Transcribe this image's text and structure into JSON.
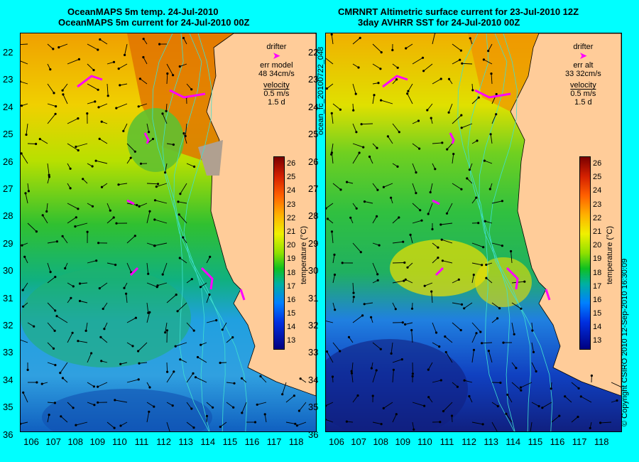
{
  "left_panel": {
    "title_line1": "OceanMAPS 5m temp. 24-Jul-2010",
    "title_line2": "OceanMAPS 5m current for 24-Jul-2010 00Z",
    "legend": {
      "drifter": "drifter",
      "err_label": "err model",
      "err_value": "48 34cm/s",
      "velocity": "velocity",
      "speed": "0.5 m/s",
      "days": "1.5 d"
    }
  },
  "right_panel": {
    "title_line1": "CMRNRT Altimetric surface current for 23-Jul-2010 12Z",
    "title_line2": "3day AVHRR SST for 24-Jul-2010 00Z",
    "legend": {
      "drifter": "drifter",
      "err_label": "err alt",
      "err_value": "33 32cm/s",
      "velocity": "velocity",
      "speed": "0.5 m/s",
      "days": "1.5 d"
    }
  },
  "latitudes": [
    "22",
    "23",
    "24",
    "25",
    "26",
    "27",
    "28",
    "29",
    "30",
    "31",
    "32",
    "33",
    "34",
    "35",
    "36"
  ],
  "longitudes": [
    "106",
    "107",
    "108",
    "109",
    "110",
    "111",
    "112",
    "113",
    "114",
    "115",
    "116",
    "117",
    "118"
  ],
  "colorbar": {
    "label": "temperature (°C)",
    "ticks": [
      "26",
      "25",
      "24",
      "23",
      "22",
      "21",
      "20",
      "19",
      "18",
      "17",
      "16",
      "15",
      "14",
      "13"
    ]
  },
  "side_labels": {
    "file_id": "ocean_fc_20100722_048",
    "copyright": "© Copyright CSIRO 2010   12-Sep-2010 16:30:09"
  },
  "colors": {
    "background": "#00ffff",
    "land": "#ffcc99",
    "drifter": "#ff00ff",
    "bathymetry": "#40e0d0"
  }
}
